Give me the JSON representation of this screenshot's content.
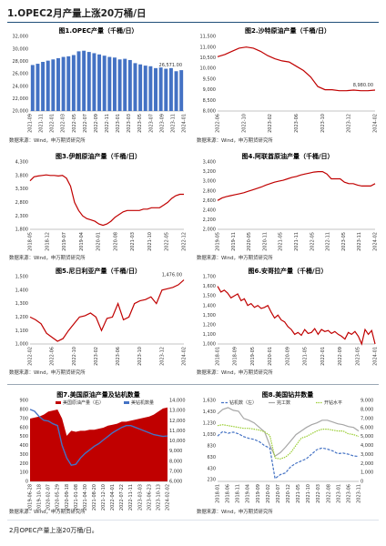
{
  "header": {
    "title": "1.OPEC2月产量上涨20万桶/日"
  },
  "source_text": "数据来源：Wind，申万期货研究所",
  "footer": {
    "text": "2月OPEC产量上涨20万桶/日。"
  },
  "colors": {
    "blue": "#4472c4",
    "red": "#c00000",
    "orange": "#ed7d31",
    "gray": "#a6a6a6",
    "green": "#9acd32",
    "area": "#d9dee8"
  },
  "chart_data": [
    {
      "id": "c1",
      "type": "bar",
      "title": "图1.OPEC产量（千桶/日）",
      "ylim": [
        20000,
        32000
      ],
      "yticks": [
        20000,
        22000,
        24000,
        26000,
        28000,
        30000,
        32000
      ],
      "yticklabels": [
        "20,000",
        "22,000",
        "24,000",
        "26,000",
        "28,000",
        "30,000",
        "32,000"
      ],
      "xticklabels": [
        "2021-09",
        "2021-11",
        "2022-01",
        "2022-03",
        "2022-05",
        "2022-07",
        "2022-09",
        "2022-11",
        "2023-01",
        "2023-03",
        "2023-05",
        "2023-07",
        "2023-09",
        "2023-11",
        "2024-01"
      ],
      "values": [
        27400,
        27600,
        27900,
        28100,
        28300,
        28500,
        28700,
        28800,
        29000,
        29600,
        29700,
        29500,
        29300,
        29100,
        28900,
        28700,
        28600,
        28300,
        28400,
        28200,
        27700,
        27500,
        27300,
        27200,
        26900,
        27000,
        26800,
        26900,
        26400,
        26571
      ],
      "annotation": "26,571.00",
      "color": "#4472c4"
    },
    {
      "id": "c2",
      "type": "line",
      "title": "图2.沙特原油产量（千桶/日）",
      "ylim": [
        8000,
        11500
      ],
      "yticks": [
        8000,
        8500,
        9000,
        9500,
        10000,
        10500,
        11000,
        11500
      ],
      "yticklabels": [
        "8,000",
        "8,500",
        "9,000",
        "9,500",
        "10,000",
        "10,500",
        "11,000",
        "11,500"
      ],
      "xticklabels": [
        "2022-06",
        "2022-10",
        "2023-02",
        "2023-06",
        "2023-10",
        "2023-12",
        "2024-02"
      ],
      "values": [
        10550,
        10650,
        10800,
        10950,
        11000,
        10950,
        10800,
        10600,
        10450,
        10350,
        10300,
        10100,
        9900,
        9600,
        9150,
        9000,
        9000,
        8950,
        8950,
        8980,
        8950,
        8950,
        8980
      ],
      "annotation": "8,980.00",
      "color": "#c00000"
    },
    {
      "id": "c3",
      "type": "line",
      "title": "图3.伊朗原油产量（千桶/日）",
      "ylim": [
        1800,
        4300
      ],
      "yticks": [
        1800,
        2300,
        2800,
        3300,
        3800,
        4300
      ],
      "yticklabels": [
        "1,800",
        "2,300",
        "2,800",
        "3,300",
        "3,800",
        "4,300"
      ],
      "xticklabels": [
        "2018-05",
        "2018-12",
        "2019-07",
        "2019-04",
        "2020-01",
        "2020-08",
        "2021-03",
        "2021-10",
        "2022-05",
        "2022-12"
      ],
      "values": [
        3600,
        3750,
        3780,
        3800,
        3820,
        3800,
        3800,
        3780,
        3800,
        3700,
        3400,
        2800,
        2500,
        2300,
        2200,
        2150,
        2100,
        2000,
        1950,
        2000,
        2100,
        2250,
        2350,
        2450,
        2500,
        2500,
        2500,
        2500,
        2550,
        2550,
        2600,
        2600,
        2600,
        2700,
        2800,
        2950,
        3050,
        3100,
        3100
      ],
      "color": "#c00000"
    },
    {
      "id": "c4",
      "type": "line",
      "title": "图4.阿联酋原油产量（千桶/日）",
      "ylim": [
        2000,
        3400
      ],
      "yticks": [
        2000,
        2200,
        2400,
        2600,
        2800,
        3000,
        3200,
        3400
      ],
      "yticklabels": [
        "2,000",
        "2,200",
        "2,400",
        "2,600",
        "2,800",
        "3,000",
        "3,200",
        "3,400"
      ],
      "xticklabels": [
        "2019-05",
        "2019-11",
        "2020-05",
        "2020-11",
        "2021-05",
        "2021-11",
        "2022-05",
        "2022-11",
        "2023-05",
        "2023-11",
        "2024-02"
      ],
      "values": [
        2600,
        2650,
        2680,
        2700,
        2720,
        2740,
        2760,
        2790,
        2820,
        2850,
        2880,
        2920,
        2950,
        2980,
        3000,
        3020,
        3050,
        3080,
        3100,
        3130,
        3150,
        3170,
        3190,
        3200,
        3200,
        3150,
        3050,
        3050,
        3050,
        2980,
        2950,
        2950,
        2920,
        2900,
        2900,
        2900,
        2950
      ],
      "color": "#c00000"
    },
    {
      "id": "c5",
      "type": "line",
      "title": "图5.尼日利亚产量（千桶/日）",
      "ylim": [
        1000,
        1500
      ],
      "yticks": [
        1000,
        1100,
        1200,
        1300,
        1400,
        1500
      ],
      "yticklabels": [
        "1,000",
        "1,100",
        "1,200",
        "1,300",
        "1,400",
        "1,500"
      ],
      "xticklabels": [
        "2022-02",
        "2022-06",
        "2022-10",
        "2023-02",
        "2023-06",
        "2023-10",
        "2023-12",
        "2024-02"
      ],
      "values": [
        1200,
        1180,
        1150,
        1080,
        1050,
        1020,
        1040,
        1100,
        1150,
        1200,
        1210,
        1230,
        1200,
        1100,
        1190,
        1200,
        1300,
        1180,
        1200,
        1300,
        1320,
        1330,
        1350,
        1300,
        1400,
        1410,
        1420,
        1440,
        1476
      ],
      "annotation": "1,476.00",
      "color": "#c00000"
    },
    {
      "id": "c6",
      "type": "line",
      "title": "图6.安哥拉产量（千桶/日）",
      "ylim": [
        1000,
        1700
      ],
      "yticks": [
        1000,
        1100,
        1200,
        1300,
        1400,
        1500,
        1600,
        1700
      ],
      "yticklabels": [
        "1,000",
        "1,100",
        "1,200",
        "1,300",
        "1,400",
        "1,500",
        "1,600",
        "1,700"
      ],
      "xticklabels": [
        "2018-01",
        "2018-09",
        "2019-05",
        "2020-01",
        "2020-09",
        "2021-05",
        "2022-01",
        "2022-09",
        "2023-05",
        "2024-01"
      ],
      "values": [
        1600,
        1540,
        1560,
        1530,
        1480,
        1500,
        1520,
        1450,
        1470,
        1400,
        1420,
        1380,
        1400,
        1370,
        1380,
        1400,
        1330,
        1270,
        1300,
        1250,
        1230,
        1180,
        1150,
        1100,
        1120,
        1090,
        1150,
        1110,
        1120,
        1160,
        1100,
        1150,
        1130,
        1140,
        1110,
        1130,
        1100,
        1080,
        1050,
        1120,
        1100,
        1130,
        1080,
        1000,
        1150,
        1100,
        1140,
        1000
      ],
      "color": "#c00000"
    },
    {
      "id": "c7",
      "type": "area",
      "title": "图7.美国原油产量及钻机数量",
      "y2lim": [
        0,
        900
      ],
      "y2ticks": [
        0,
        100,
        200,
        300,
        400,
        500,
        600,
        700,
        800,
        900
      ],
      "yticks": [
        6000,
        7000,
        8000,
        9000,
        10000,
        11000,
        12000,
        13000,
        14000
      ],
      "yticklabels": [
        "6,000",
        "7,000",
        "8,000",
        "9,000",
        "10,000",
        "11,000",
        "12,000",
        "13,000",
        "14,000"
      ],
      "ylim": [
        6000,
        14000
      ],
      "xticklabels": [
        "2019-06-28",
        "2019-10-18",
        "2020-02-07",
        "2020-05-29",
        "2020-09-18",
        "2021-01-08",
        "2021-04-30",
        "2021-08-20",
        "2021-12-10",
        "2022-04-01",
        "2022-07-22",
        "2022-11-11",
        "2023-03-03",
        "2023-06-23",
        "2023-10-13",
        "2024-02-02"
      ],
      "series": [
        {
          "name": "美国原油产量（右）",
          "axis": "right",
          "color": "#c00000",
          "values": [
            12200,
            12300,
            12400,
            12600,
            12900,
            13000,
            13100,
            12200,
            10500,
            11000,
            10900,
            11000,
            11000,
            11100,
            11100,
            11200,
            11300,
            11500,
            11600,
            11700,
            11900,
            11900,
            12000,
            12100,
            12200,
            12300,
            12400,
            12600,
            12900,
            13200,
            13300
          ]
        },
        {
          "name": "美钻机数量",
          "axis": "left",
          "color": "#4472c4",
          "values": [
            800,
            780,
            720,
            680,
            670,
            640,
            620,
            400,
            260,
            180,
            190,
            260,
            310,
            350,
            390,
            420,
            460,
            500,
            540,
            570,
            600,
            620,
            620,
            600,
            580,
            560,
            540,
            520,
            510,
            500,
            505
          ]
        }
      ]
    },
    {
      "id": "c8",
      "type": "line",
      "title": "图8.美国钻井数量",
      "ylim": [
        200,
        1630
      ],
      "yticks": [
        230,
        430,
        630,
        830,
        1030,
        1230,
        1430,
        1630
      ],
      "yticklabels": [
        "230",
        "430",
        "630",
        "830",
        "1,030",
        "1,230",
        "1,430",
        "1,630"
      ],
      "y2lim": [
        0,
        9000
      ],
      "y2ticks": [
        0,
        1000,
        2000,
        3000,
        4000,
        5000,
        6000,
        7000,
        8000,
        9000
      ],
      "y2ticklabels": [
        "0",
        "1,000",
        "2,000",
        "3,000",
        "4,000",
        "5,000",
        "6,000",
        "7,000",
        "8,000",
        "9,000"
      ],
      "xticklabels": [
        "2018-01",
        "2018-06",
        "2018-11",
        "2019-04",
        "2019-09",
        "2020-02",
        "2020-07",
        "2020-12",
        "2021-05",
        "2021-10",
        "2022-03",
        "2022-08",
        "2023-01",
        "2023-06",
        "2023-11"
      ],
      "series": [
        {
          "name": "钻机数（左）",
          "axis": "left",
          "color": "#4472c4",
          "dash": "3,1.5",
          "values": [
            1000,
            1080,
            1050,
            1070,
            1040,
            990,
            960,
            940,
            900,
            830,
            790,
            250,
            320,
            350,
            460,
            520,
            560,
            600,
            680,
            760,
            790,
            770,
            740,
            690,
            700,
            680,
            650,
            640
          ]
        },
        {
          "name": "完工数",
          "axis": "right",
          "color": "#a6a6a6",
          "dash": "",
          "values": [
            7500,
            8000,
            8200,
            7900,
            7800,
            7000,
            6800,
            6500,
            6000,
            5500,
            4000,
            2800,
            3200,
            3800,
            4500,
            5200,
            5600,
            6000,
            6300,
            6500,
            6800,
            6800,
            6600,
            6400,
            6300,
            6100,
            6000,
            5600
          ]
        },
        {
          "name": "开钻水平",
          "axis": "right",
          "color": "#9acd32",
          "dash": "1.5,1",
          "values": [
            6200,
            6300,
            6200,
            6100,
            6000,
            5900,
            5900,
            5800,
            5700,
            5500,
            5100,
            2600,
            2500,
            2700,
            3200,
            4000,
            4800,
            5000,
            5300,
            5600,
            5800,
            5800,
            5700,
            5600,
            5600,
            5300,
            5200,
            5000
          ]
        }
      ]
    }
  ]
}
